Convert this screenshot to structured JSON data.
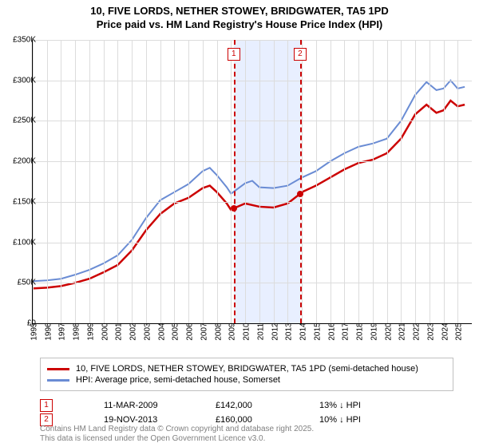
{
  "title": {
    "line1": "10, FIVE LORDS, NETHER STOWEY, BRIDGWATER, TA5 1PD",
    "line2": "Price paid vs. HM Land Registry's House Price Index (HPI)"
  },
  "chart": {
    "type": "line",
    "background_color": "#ffffff",
    "grid_color": "#dcdcdc",
    "x": {
      "min": 1995,
      "max": 2026,
      "labels": [
        "1995",
        "1996",
        "1997",
        "1998",
        "1999",
        "2000",
        "2001",
        "2002",
        "2003",
        "2004",
        "2005",
        "2006",
        "2007",
        "2008",
        "2009",
        "2010",
        "2011",
        "2012",
        "2013",
        "2014",
        "2015",
        "2016",
        "2017",
        "2018",
        "2019",
        "2020",
        "2021",
        "2022",
        "2023",
        "2024",
        "2025"
      ]
    },
    "y": {
      "min": 0,
      "max": 350000,
      "labels": [
        "£0",
        "£50K",
        "£100K",
        "£150K",
        "£200K",
        "£250K",
        "£300K",
        "£350K"
      ],
      "values": [
        0,
        50000,
        100000,
        150000,
        200000,
        250000,
        300000,
        350000
      ]
    },
    "band": {
      "from": 2009.19,
      "to": 2013.88,
      "color": "#e8efff"
    },
    "markers": [
      {
        "id": "1",
        "x": 2009.19,
        "y": 142000
      },
      {
        "id": "2",
        "x": 2013.88,
        "y": 160000
      }
    ],
    "series": [
      {
        "name": "property",
        "color": "#cc0000",
        "width": 2.5,
        "points": [
          [
            1995,
            43000
          ],
          [
            1996,
            44000
          ],
          [
            1997,
            46000
          ],
          [
            1998,
            50000
          ],
          [
            1999,
            55000
          ],
          [
            2000,
            63000
          ],
          [
            2001,
            72000
          ],
          [
            2002,
            90000
          ],
          [
            2003,
            115000
          ],
          [
            2004,
            135000
          ],
          [
            2005,
            148000
          ],
          [
            2006,
            155000
          ],
          [
            2007,
            167000
          ],
          [
            2007.5,
            170000
          ],
          [
            2008,
            162000
          ],
          [
            2008.7,
            148000
          ],
          [
            2009,
            140000
          ],
          [
            2009.19,
            142000
          ],
          [
            2010,
            148000
          ],
          [
            2011,
            144000
          ],
          [
            2012,
            143000
          ],
          [
            2013,
            148000
          ],
          [
            2013.88,
            160000
          ],
          [
            2014,
            162000
          ],
          [
            2015,
            170000
          ],
          [
            2016,
            180000
          ],
          [
            2017,
            190000
          ],
          [
            2018,
            198000
          ],
          [
            2019,
            202000
          ],
          [
            2020,
            210000
          ],
          [
            2021,
            228000
          ],
          [
            2022,
            258000
          ],
          [
            2022.8,
            270000
          ],
          [
            2023.5,
            260000
          ],
          [
            2024,
            263000
          ],
          [
            2024.5,
            275000
          ],
          [
            2025,
            268000
          ],
          [
            2025.5,
            270000
          ]
        ]
      },
      {
        "name": "hpi",
        "color": "#6a8cd4",
        "width": 2,
        "points": [
          [
            1995,
            52000
          ],
          [
            1996,
            53000
          ],
          [
            1997,
            55000
          ],
          [
            1998,
            60000
          ],
          [
            1999,
            66000
          ],
          [
            2000,
            74000
          ],
          [
            2001,
            84000
          ],
          [
            2002,
            103000
          ],
          [
            2003,
            130000
          ],
          [
            2004,
            152000
          ],
          [
            2005,
            162000
          ],
          [
            2006,
            172000
          ],
          [
            2007,
            188000
          ],
          [
            2007.5,
            192000
          ],
          [
            2008,
            183000
          ],
          [
            2008.7,
            168000
          ],
          [
            2009,
            160000
          ],
          [
            2010,
            173000
          ],
          [
            2010.5,
            176000
          ],
          [
            2011,
            168000
          ],
          [
            2012,
            167000
          ],
          [
            2013,
            170000
          ],
          [
            2014,
            180000
          ],
          [
            2015,
            188000
          ],
          [
            2016,
            200000
          ],
          [
            2017,
            210000
          ],
          [
            2018,
            218000
          ],
          [
            2019,
            222000
          ],
          [
            2020,
            228000
          ],
          [
            2021,
            250000
          ],
          [
            2022,
            282000
          ],
          [
            2022.8,
            298000
          ],
          [
            2023.5,
            288000
          ],
          [
            2024,
            290000
          ],
          [
            2024.5,
            300000
          ],
          [
            2025,
            290000
          ],
          [
            2025.5,
            292000
          ]
        ]
      }
    ]
  },
  "legend": {
    "row1": {
      "color": "#cc0000",
      "label": "10, FIVE LORDS, NETHER STOWEY, BRIDGWATER, TA5 1PD (semi-detached house)"
    },
    "row2": {
      "color": "#6a8cd4",
      "label": "HPI: Average price, semi-detached house, Somerset"
    }
  },
  "annotations": [
    {
      "id": "1",
      "date": "11-MAR-2009",
      "price": "£142,000",
      "delta": "13% ↓ HPI"
    },
    {
      "id": "2",
      "date": "19-NOV-2013",
      "price": "£160,000",
      "delta": "10% ↓ HPI"
    }
  ],
  "credits": {
    "line1": "Contains HM Land Registry data © Crown copyright and database right 2025.",
    "line2": "This data is licensed under the Open Government Licence v3.0."
  }
}
